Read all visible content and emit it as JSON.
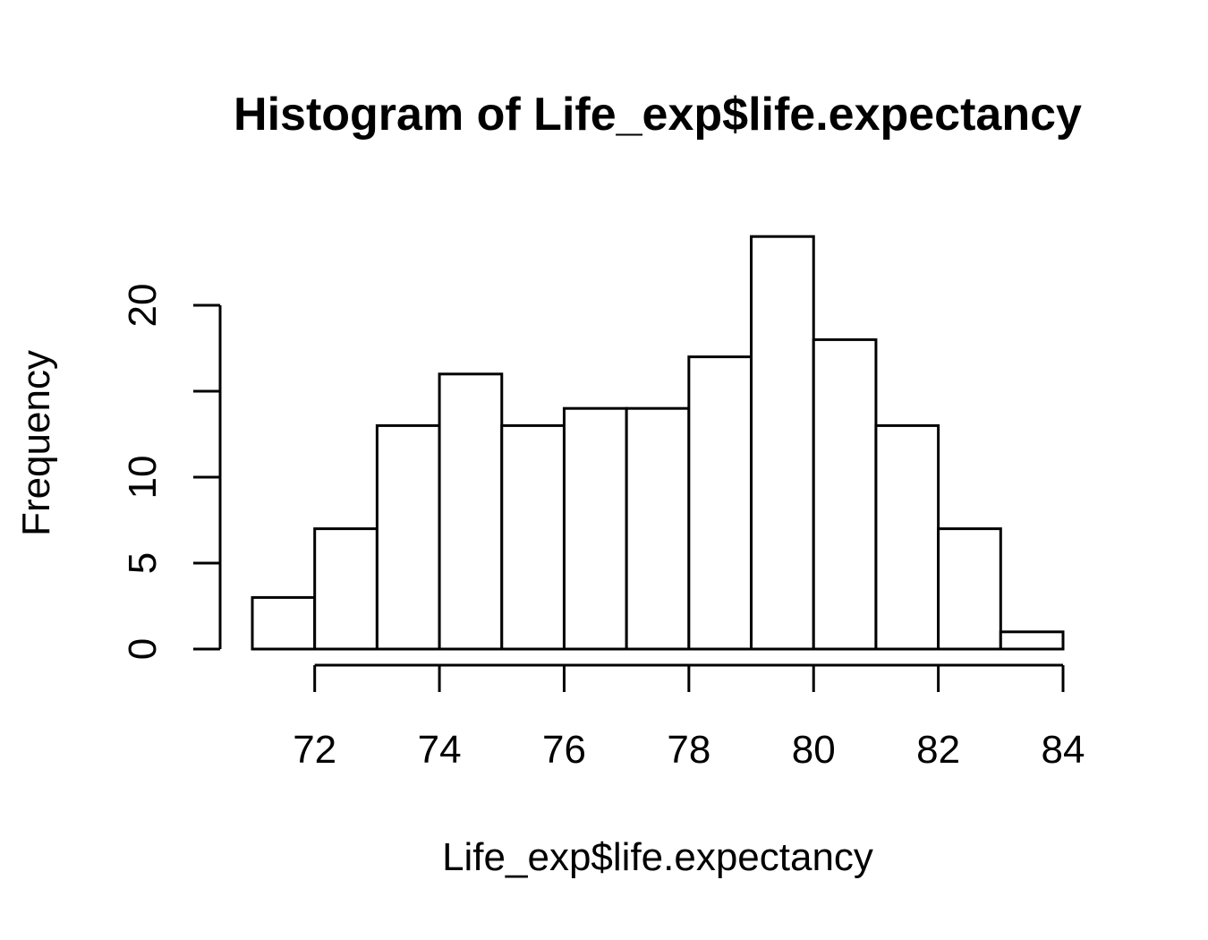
{
  "chart_data": {
    "type": "bar",
    "title": "Histogram of Life_exp$life.expectancy",
    "xlabel": "Life_exp$life.expectancy",
    "ylabel": "Frequency",
    "bins": [
      {
        "start": 71,
        "end": 72,
        "count": 3
      },
      {
        "start": 72,
        "end": 73,
        "count": 7
      },
      {
        "start": 73,
        "end": 74,
        "count": 13
      },
      {
        "start": 74,
        "end": 75,
        "count": 16
      },
      {
        "start": 75,
        "end": 76,
        "count": 13
      },
      {
        "start": 76,
        "end": 77,
        "count": 14
      },
      {
        "start": 77,
        "end": 78,
        "count": 14
      },
      {
        "start": 78,
        "end": 79,
        "count": 17
      },
      {
        "start": 79,
        "end": 80,
        "count": 24
      },
      {
        "start": 80,
        "end": 81,
        "count": 18
      },
      {
        "start": 81,
        "end": 82,
        "count": 13
      },
      {
        "start": 82,
        "end": 83,
        "count": 7
      },
      {
        "start": 83,
        "end": 84,
        "count": 1
      }
    ],
    "xlim": [
      71,
      84
    ],
    "ylim": [
      0,
      24
    ],
    "x_ticks": [
      72,
      74,
      76,
      78,
      80,
      82,
      84
    ],
    "y_ticks": [
      0,
      5,
      10,
      15,
      20
    ],
    "y_tick_labels": [
      "0",
      "5",
      "10",
      "",
      "20"
    ],
    "grid": false,
    "legend": "none"
  }
}
